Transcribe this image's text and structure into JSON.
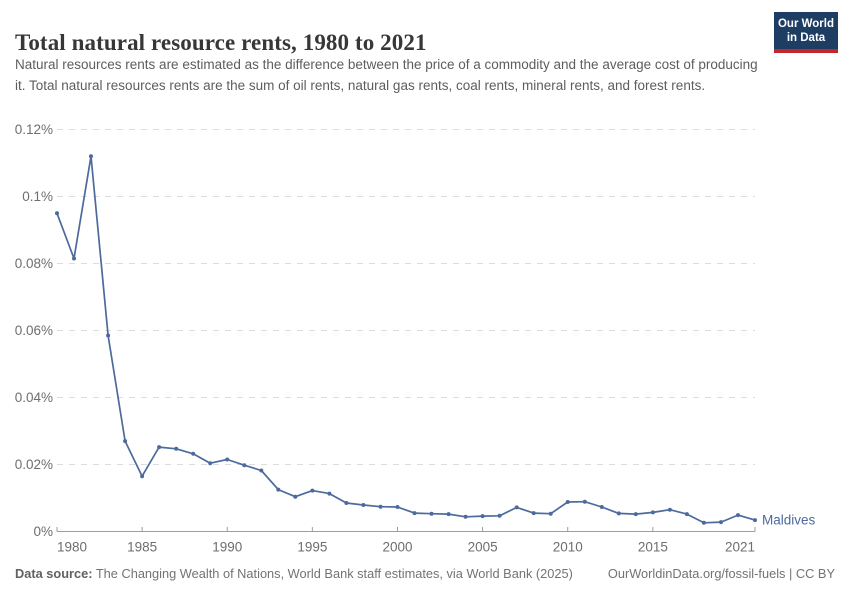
{
  "header": {
    "title": "Total natural resource rents, 1980 to 2021",
    "subtitle": "Natural resources rents are estimated as the difference between the price of a commodity and the average cost of producing it. Total natural resources rents are the sum of oil rents, natural gas rents, coal rents, mineral rents, and forest rents."
  },
  "logo": {
    "line1": "Our World",
    "line2": "in Data",
    "bg_color": "#1d3d63",
    "stripe_color": "#c5262c"
  },
  "chart_data": {
    "type": "line",
    "title": "Total natural resource rents, 1980 to 2021",
    "entity_label": "Maldives",
    "unit": "%",
    "x": [
      1980,
      1981,
      1982,
      1983,
      1984,
      1985,
      1986,
      1987,
      1988,
      1989,
      1990,
      1991,
      1992,
      1993,
      1994,
      1995,
      1996,
      1997,
      1998,
      1999,
      2000,
      2001,
      2002,
      2003,
      2004,
      2005,
      2006,
      2007,
      2008,
      2009,
      2010,
      2011,
      2012,
      2013,
      2014,
      2015,
      2016,
      2017,
      2018,
      2019,
      2020,
      2021
    ],
    "series": [
      {
        "name": "Maldives",
        "color": "#4c6a9c",
        "values": [
          0.095,
          0.0815,
          0.112,
          0.0585,
          0.027,
          0.0165,
          0.0252,
          0.0247,
          0.0232,
          0.0204,
          0.0215,
          0.0198,
          0.0182,
          0.0125,
          0.0104,
          0.0122,
          0.0113,
          0.0085,
          0.0079,
          0.0074,
          0.0073,
          0.0055,
          0.0053,
          0.0052,
          0.0044,
          0.0046,
          0.0047,
          0.0072,
          0.0055,
          0.0053,
          0.0088,
          0.0089,
          0.0073,
          0.0054,
          0.0052,
          0.0057,
          0.0065,
          0.0052,
          0.0026,
          0.0028,
          0.0049,
          0.0034
        ]
      }
    ],
    "xlim": [
      1980,
      2021
    ],
    "ylim": [
      0,
      0.12
    ],
    "x_ticks": [
      1980,
      1985,
      1990,
      1995,
      2000,
      2005,
      2010,
      2015,
      2021
    ],
    "y_ticks": [
      0,
      0.02,
      0.04,
      0.06,
      0.08,
      0.1,
      0.12
    ],
    "y_tick_labels": [
      "0%",
      "0.02%",
      "0.04%",
      "0.06%",
      "0.08%",
      "0.1%",
      "0.12%"
    ],
    "grid": true,
    "legend_position": "end-of-line-label",
    "colors": {
      "line": "#4c6a9c",
      "gridline": "#dcdcdc",
      "axis": "#9e9e9e",
      "tick_text": "#6e6e6e"
    }
  },
  "footer": {
    "source_label": "Data source:",
    "source_text": " The Changing Wealth of Nations, World Bank staff estimates, via World Bank (2025)",
    "link": "OurWorldinData.org/fossil-fuels",
    "license_suffix": " | CC BY"
  }
}
